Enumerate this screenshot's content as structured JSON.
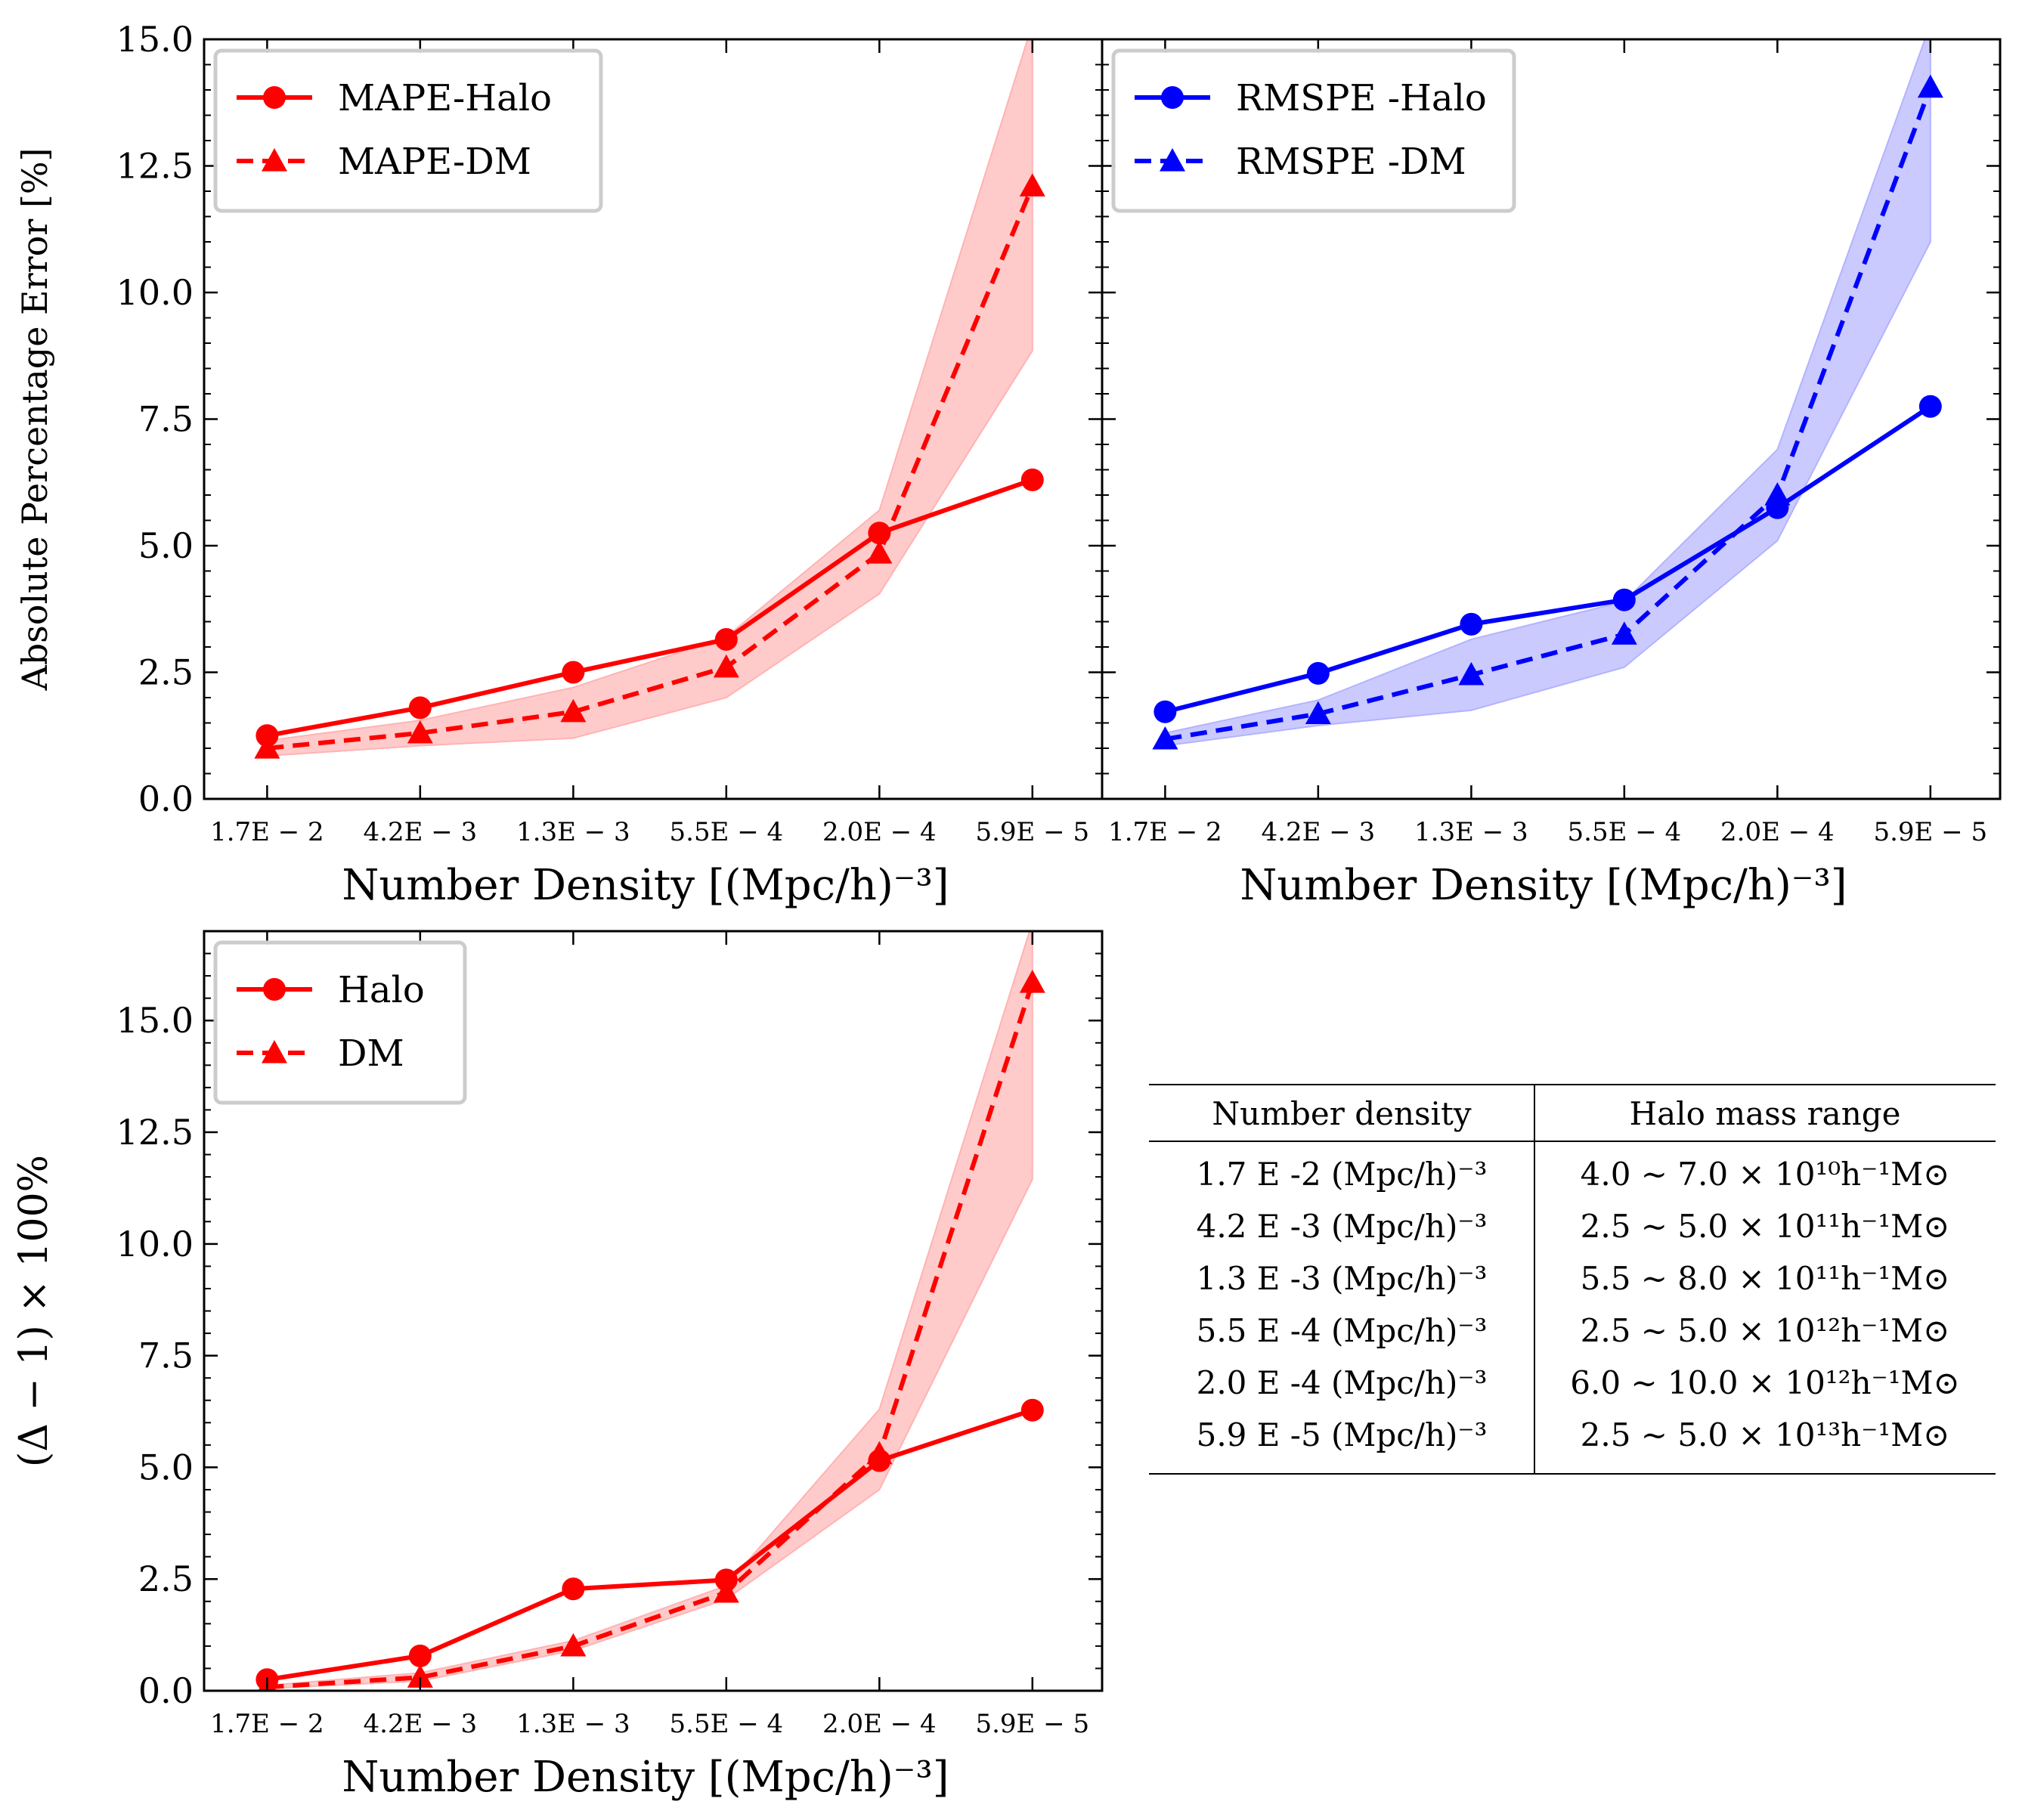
{
  "chart_data": [
    {
      "type": "line",
      "categories": [
        "1.7E − 2",
        "4.2E − 3",
        "1.3E − 3",
        "5.5E − 4",
        "2.0E − 4",
        "5.9E − 5"
      ],
      "xlabel": "Number Density [(Mpc/h)⁻³]",
      "ylabel": "Absolute Percentage Error [%]",
      "ylim": [
        0,
        15
      ],
      "yticks": [
        "0.0",
        "2.5",
        "5.0",
        "7.5",
        "10.0",
        "12.5",
        "15.0"
      ],
      "legend_position": "top-left",
      "series": [
        {
          "name": "MAPE-Halo",
          "style": "solid",
          "marker": "circle",
          "color": "#ff0000",
          "values": [
            1.25,
            1.8,
            2.5,
            3.15,
            5.25,
            6.3
          ]
        },
        {
          "name": "MAPE-DM",
          "style": "dashed",
          "marker": "triangle",
          "color": "#ff0000",
          "values": [
            1.0,
            1.3,
            1.72,
            2.6,
            4.85,
            12.1
          ],
          "band_lower": [
            0.85,
            1.05,
            1.2,
            2.0,
            4.05,
            8.85
          ],
          "band_upper": [
            1.15,
            1.55,
            2.2,
            3.2,
            5.7,
            15.3
          ],
          "band_color": "#ffb3b3"
        }
      ]
    },
    {
      "type": "line",
      "categories": [
        "1.7E − 2",
        "4.2E − 3",
        "1.3E − 3",
        "5.5E − 4",
        "2.0E − 4",
        "5.9E − 5"
      ],
      "xlabel": "Number Density [(Mpc/h)⁻³]",
      "ylabel": "",
      "ylim": [
        0,
        15
      ],
      "legend_position": "top-left",
      "series": [
        {
          "name": "RMSPE -Halo",
          "style": "solid",
          "marker": "circle",
          "color": "#0000ff",
          "values": [
            1.72,
            2.48,
            3.45,
            3.93,
            5.75,
            7.75
          ]
        },
        {
          "name": "RMSPE -DM",
          "style": "dashed",
          "marker": "triangle",
          "color": "#0000ff",
          "values": [
            1.18,
            1.68,
            2.45,
            3.25,
            6.0,
            14.05
          ],
          "band_lower": [
            1.05,
            1.45,
            1.75,
            2.6,
            5.1,
            11.0
          ],
          "band_upper": [
            1.3,
            1.95,
            3.15,
            3.9,
            6.9,
            15.3
          ],
          "band_color": "#b3b3ff"
        }
      ]
    },
    {
      "type": "line",
      "categories": [
        "1.7E − 2",
        "4.2E − 3",
        "1.3E − 3",
        "5.5E − 4",
        "2.0E − 4",
        "5.9E − 5"
      ],
      "xlabel": "Number Density [(Mpc/h)⁻³]",
      "ylabel": "(Δ − 1) × 100%",
      "ylim": [
        0,
        17
      ],
      "yticks": [
        "0.0",
        "2.5",
        "5.0",
        "7.5",
        "10.0",
        "12.5",
        "15.0"
      ],
      "legend_position": "top-left",
      "series": [
        {
          "name": "Halo",
          "style": "solid",
          "marker": "circle",
          "color": "#ff0000",
          "values": [
            0.25,
            0.78,
            2.28,
            2.48,
            5.15,
            6.28
          ]
        },
        {
          "name": "DM",
          "style": "dashed",
          "marker": "triangle",
          "color": "#ff0000",
          "values": [
            0.08,
            0.3,
            1.0,
            2.2,
            5.3,
            15.85
          ],
          "band_lower": [
            0.05,
            0.22,
            0.9,
            2.05,
            4.5,
            11.45
          ],
          "band_upper": [
            0.12,
            0.4,
            1.12,
            2.35,
            6.3,
            17.2
          ],
          "band_color": "#ffb3b3"
        }
      ]
    }
  ],
  "table": {
    "headers": [
      "Number density",
      "Halo mass range"
    ],
    "rows": [
      {
        "density": "1.7 E -2 (Mpc/h)⁻³",
        "mass": "4.0 ∼ 7.0 × 10¹⁰h⁻¹M⊙"
      },
      {
        "density": "4.2 E -3 (Mpc/h)⁻³",
        "mass": "2.5 ∼ 5.0 × 10¹¹h⁻¹M⊙"
      },
      {
        "density": "1.3 E -3 (Mpc/h)⁻³",
        "mass": "5.5 ∼ 8.0 × 10¹¹h⁻¹M⊙"
      },
      {
        "density": "5.5 E -4 (Mpc/h)⁻³",
        "mass": "2.5 ∼ 5.0 × 10¹²h⁻¹M⊙"
      },
      {
        "density": "2.0 E -4 (Mpc/h)⁻³",
        "mass": "6.0 ∼ 10.0 × 10¹²h⁻¹M⊙"
      },
      {
        "density": "5.9 E -5 (Mpc/h)⁻³",
        "mass": "2.5 ∼ 5.0 × 10¹³h⁻¹M⊙"
      }
    ]
  }
}
